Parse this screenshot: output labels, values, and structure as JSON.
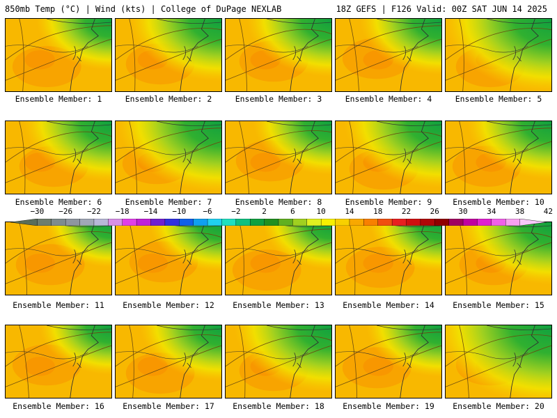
{
  "header": {
    "left": "850mb Temp (°C) | Wind (kts) | College of DuPage NEXLAB",
    "right": "18Z GEFS | F126 Valid: 00Z SAT JUN 14 2025"
  },
  "caption_prefix": "Ensemble Member: ",
  "members": [
    {
      "label": "Ensemble Member: 1",
      "green": 0.35
    },
    {
      "label": "Ensemble Member: 2",
      "green": 0.6
    },
    {
      "label": "Ensemble Member: 3",
      "green": 0.5
    },
    {
      "label": "Ensemble Member: 4",
      "green": 0.45
    },
    {
      "label": "Ensemble Member: 5",
      "green": 0.85
    },
    {
      "label": "Ensemble Member: 6",
      "green": 0.55
    },
    {
      "label": "Ensemble Member: 7",
      "green": 0.8
    },
    {
      "label": "Ensemble Member: 8",
      "green": 0.4
    },
    {
      "label": "Ensemble Member: 9",
      "green": 0.7
    },
    {
      "label": "Ensemble Member: 10",
      "green": 0.5
    },
    {
      "label": "Ensemble Member: 11",
      "green": 0.2
    },
    {
      "label": "Ensemble Member: 12",
      "green": 0.3
    },
    {
      "label": "Ensemble Member: 13",
      "green": 0.25
    },
    {
      "label": "Ensemble Member: 14",
      "green": 0.3
    },
    {
      "label": "Ensemble Member: 15",
      "green": 0.6
    },
    {
      "label": "Ensemble Member: 16",
      "green": 0.3
    },
    {
      "label": "Ensemble Member: 17",
      "green": 0.45
    },
    {
      "label": "Ensemble Member: 18",
      "green": 0.7
    },
    {
      "label": "Ensemble Member: 19",
      "green": 0.35
    },
    {
      "label": "Ensemble Member: 20",
      "green": 1.0
    }
  ],
  "colorbar": {
    "tick_labels": [
      "−30",
      "−26",
      "−22",
      "−18",
      "−14",
      "−10",
      "−6",
      "−2",
      "2",
      "6",
      "10",
      "14",
      "18",
      "22",
      "26",
      "30",
      "34",
      "38",
      "42"
    ],
    "colors": [
      "#5a6e5a",
      "#6e7e6e",
      "#7e8c8e",
      "#8e96a0",
      "#a0a8b8",
      "#b8b8d8",
      "#d890e8",
      "#e040e8",
      "#c020d8",
      "#7020d0",
      "#3030e0",
      "#1060e8",
      "#10a0f0",
      "#20d0f0",
      "#20e0c0",
      "#10c080",
      "#10a040",
      "#209020",
      "#60b020",
      "#a0d020",
      "#e0f020",
      "#f8f000",
      "#f8d000",
      "#f8a800",
      "#f88000",
      "#f05010",
      "#e82020",
      "#d01010",
      "#b00808",
      "#900000",
      "#a00060",
      "#c000a0",
      "#e020d0",
      "#f060e8",
      "#f8a0f0",
      "#f8c8f8"
    ]
  }
}
